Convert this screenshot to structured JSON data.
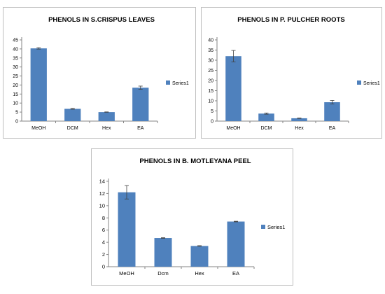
{
  "chart_data": [
    {
      "type": "bar",
      "title": "PHENOLS IN S.CRISPUS LEAVES",
      "categories": [
        "MeOH",
        "DCM",
        "Hex",
        "EA"
      ],
      "series": [
        {
          "name": "Series1",
          "values": [
            40.3,
            6.8,
            5.0,
            18.5
          ],
          "error": [
            0.4,
            0.2,
            0.1,
            0.9
          ]
        }
      ],
      "ylim": [
        0,
        45
      ],
      "yticks": [
        0,
        5,
        10,
        15,
        20,
        25,
        30,
        35,
        40,
        45
      ],
      "grid": false,
      "legend": "right",
      "color": "#4f81bd"
    },
    {
      "type": "bar",
      "title": "PHENOLS IN P. PULCHER ROOTS",
      "categories": [
        "MeOH",
        "DCM",
        "Hex",
        "EA"
      ],
      "series": [
        {
          "name": "Series1",
          "values": [
            32.0,
            3.7,
            1.4,
            9.3
          ],
          "error": [
            2.8,
            0.3,
            0.1,
            0.9
          ]
        }
      ],
      "ylim": [
        0,
        40
      ],
      "yticks": [
        0,
        5,
        10,
        15,
        20,
        25,
        30,
        35,
        40
      ],
      "grid": false,
      "legend": "right",
      "color": "#4f81bd"
    },
    {
      "type": "bar",
      "title": "PHENOLS IN B. MOTLEYANA PEEL",
      "categories": [
        "MeOH",
        "Dcm",
        "Hex",
        "EA"
      ],
      "series": [
        {
          "name": "Series1",
          "values": [
            12.2,
            4.7,
            3.4,
            7.4
          ],
          "error": [
            1.1,
            0.05,
            0.05,
            0.05
          ]
        }
      ],
      "ylim": [
        0,
        14
      ],
      "yticks": [
        0,
        2,
        4,
        6,
        8,
        10,
        12,
        14
      ],
      "grid": false,
      "legend": "right",
      "color": "#4f81bd"
    }
  ]
}
